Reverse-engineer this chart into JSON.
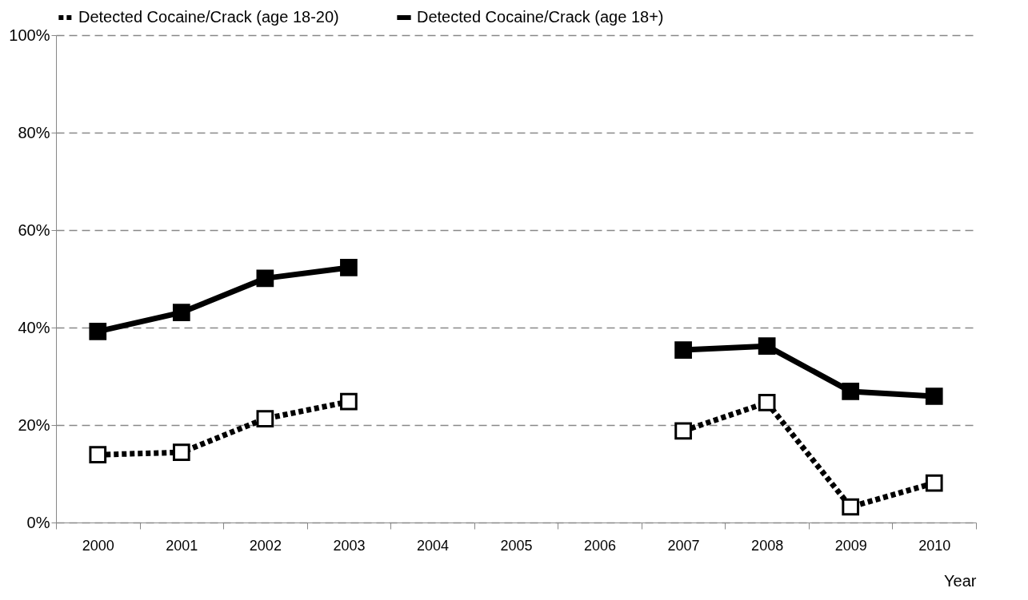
{
  "chart_data": {
    "type": "line",
    "xlabel": "Year",
    "categories": [
      "2000",
      "2001",
      "2002",
      "2003",
      "2004",
      "2005",
      "2006",
      "2007",
      "2008",
      "2009",
      "2010"
    ],
    "series": [
      {
        "name": "Detected Cocaine/Crack (age 18-20)",
        "color": "#000000",
        "line_style": "dotted",
        "values": [
          13.9,
          14.4,
          21.3,
          24.8,
          null,
          null,
          null,
          18.8,
          24.6,
          3.2,
          8.1
        ]
      },
      {
        "name": "Detected Cocaine/Crack  (age 18+)",
        "color": "#000000",
        "line_style": "solid",
        "values": [
          39.2,
          43.1,
          50.1,
          52.3,
          null,
          null,
          null,
          35.4,
          36.2,
          26.9,
          25.9
        ]
      }
    ],
    "ylim": [
      0,
      100
    ],
    "yticks": [
      {
        "value": 0,
        "label": "0%"
      },
      {
        "value": 20,
        "label": "20%"
      },
      {
        "value": 40,
        "label": "40%"
      },
      {
        "value": 60,
        "label": "60%"
      },
      {
        "value": 80,
        "label": "80%"
      },
      {
        "value": 100,
        "label": "100%"
      }
    ],
    "grid": "y",
    "legend": "top",
    "marker": "square"
  }
}
